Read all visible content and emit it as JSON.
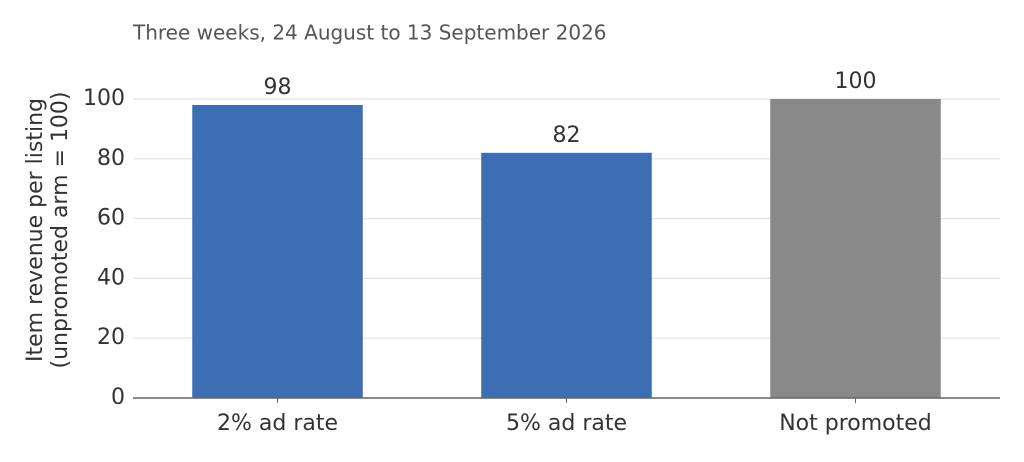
{
  "chart_data": {
    "type": "bar",
    "subtitle": "Three weeks, 24 August to 13 September 2026",
    "ylabel": [
      "Item revenue per listing",
      "(unpromoted arm = 100)"
    ],
    "categories": [
      "2% ad rate",
      "5% ad rate",
      "Not promoted"
    ],
    "values": [
      98,
      82,
      100
    ],
    "colors": [
      "#3d6eb3",
      "#3d6eb3",
      "#898989"
    ],
    "ylim": [
      0,
      100
    ],
    "yticks": [
      0,
      20,
      40,
      60,
      80,
      100
    ],
    "grid": true
  }
}
